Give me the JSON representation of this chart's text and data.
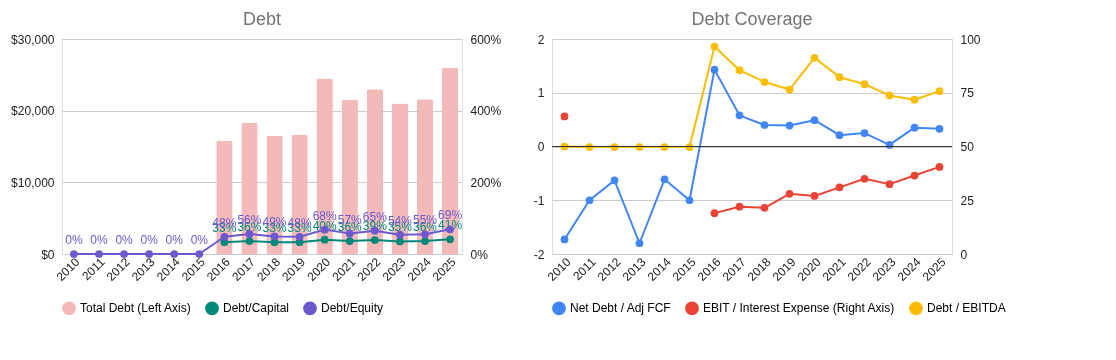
{
  "chart_data": [
    {
      "type": "bar",
      "title": "Debt",
      "categories": [
        "2010",
        "2011",
        "2012",
        "2013",
        "2014",
        "2015",
        "2016",
        "2017",
        "2018",
        "2019",
        "2020",
        "2021",
        "2022",
        "2023",
        "2024",
        "2025"
      ],
      "series": [
        {
          "name": "Total Debt (Left Axis)",
          "type": "bar",
          "color": "#f4b9b9",
          "values": [
            0,
            0,
            0,
            0,
            0,
            0,
            15800,
            18300,
            16500,
            16600,
            24500,
            21500,
            23000,
            21000,
            21600,
            26000
          ]
        },
        {
          "name": "Debt/Capital",
          "type": "line",
          "axis": "y2",
          "color": "#00897b",
          "values": [
            null,
            null,
            null,
            null,
            null,
            null,
            33,
            36,
            33,
            33,
            40,
            36,
            39,
            35,
            36,
            41
          ],
          "value_labels": [
            null,
            null,
            null,
            null,
            null,
            null,
            "33%",
            "36%",
            "33%",
            "33%",
            "40%",
            "36%",
            "39%",
            "35%",
            "36%",
            "41%"
          ]
        },
        {
          "name": "Debt/Equity",
          "type": "line",
          "axis": "y2",
          "color": "#6a5acd",
          "values": [
            0,
            0,
            0,
            0,
            0,
            0,
            48,
            56,
            49,
            48,
            68,
            57,
            65,
            54,
            55,
            69
          ],
          "value_labels": [
            "0%",
            "0%",
            "0%",
            "0%",
            "0%",
            "0%",
            "48%",
            "56%",
            "49%",
            "48%",
            "68%",
            "57%",
            "65%",
            "54%",
            "55%",
            "69%"
          ]
        }
      ],
      "ylim": [
        0,
        30000
      ],
      "yticks": [
        {
          "value": 0,
          "label": "$0"
        },
        {
          "value": 10000,
          "label": "$10,000"
        },
        {
          "value": 20000,
          "label": "$20,000"
        },
        {
          "value": 30000,
          "label": "$30,000"
        }
      ],
      "y2lim": [
        0,
        600
      ],
      "y2ticks": [
        {
          "value": 0,
          "label": "0%"
        },
        {
          "value": 200,
          "label": "200%"
        },
        {
          "value": 400,
          "label": "400%"
        },
        {
          "value": 600,
          "label": "600%"
        }
      ],
      "grid": "y",
      "legend": "bottom",
      "marker": "circle"
    },
    {
      "type": "line",
      "title": "Debt Coverage",
      "categories": [
        "2010",
        "2011",
        "2012",
        "2013",
        "2014",
        "2015",
        "2016",
        "2017",
        "2018",
        "2019",
        "2020",
        "2021",
        "2022",
        "2023",
        "2024",
        "2025"
      ],
      "series": [
        {
          "name": "Net Debt / Adj FCF",
          "color": "#4285f4",
          "values": [
            -1.73,
            -1.0,
            -0.63,
            -1.8,
            -0.61,
            -1.0,
            1.43,
            0.58,
            0.4,
            0.39,
            0.49,
            0.21,
            0.25,
            0.03,
            0.35,
            0.33
          ]
        },
        {
          "name": "EBIT / Interest Expense (Right Axis)",
          "axis": "y2",
          "color": "#ea4335",
          "values": [
            64,
            null,
            null,
            null,
            null,
            null,
            19,
            22,
            21.5,
            28,
            27,
            31,
            35,
            32.5,
            36.5,
            40.5
          ]
        },
        {
          "name": "Debt / EBITDA",
          "color": "#fbbc04",
          "values": [
            0,
            -0.01,
            -0.01,
            -0.01,
            -0.01,
            -0.01,
            1.86,
            1.42,
            1.2,
            1.06,
            1.65,
            1.29,
            1.16,
            0.95,
            0.87,
            1.03
          ]
        }
      ],
      "ylim": [
        -2,
        2
      ],
      "yticks": [
        -2,
        -1,
        0,
        1,
        2
      ],
      "y2lim": [
        0,
        100
      ],
      "y2ticks": [
        0,
        25,
        50,
        75,
        100
      ],
      "ref_lines": [
        {
          "axis": "y",
          "value": 0,
          "color": "#333333"
        }
      ],
      "grid": "y",
      "legend": "bottom",
      "marker": "circle"
    }
  ]
}
